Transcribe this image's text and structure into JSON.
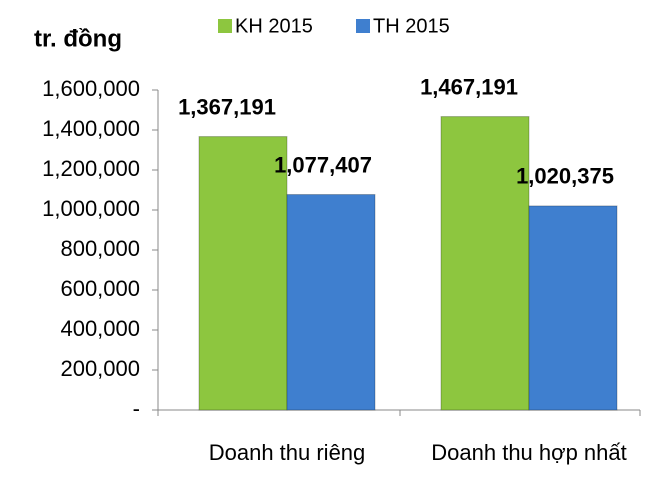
{
  "chart_data": {
    "type": "bar",
    "y_label": "tr. đồng",
    "categories": [
      "Doanh thu riêng",
      "Doanh thu hợp nhất"
    ],
    "series": [
      {
        "name": "KH 2015",
        "color": "#8dc63f",
        "values": [
          1367191,
          1467191
        ],
        "value_labels": [
          "1,367,191",
          "1,467,191"
        ]
      },
      {
        "name": "TH 2015",
        "color": "#3f7fcf",
        "values": [
          1077407,
          1020375
        ],
        "value_labels": [
          "1,077,407",
          "1,020,375"
        ]
      }
    ],
    "ylim": [
      0,
      1600000
    ],
    "yticks": [
      {
        "value": 0,
        "label": "-"
      },
      {
        "value": 200000,
        "label": "200,000"
      },
      {
        "value": 400000,
        "label": "400,000"
      },
      {
        "value": 600000,
        "label": "600,000"
      },
      {
        "value": 800000,
        "label": "800,000"
      },
      {
        "value": 1000000,
        "label": "1,000,000"
      },
      {
        "value": 1200000,
        "label": "1,200,000"
      },
      {
        "value": 1400000,
        "label": "1,400,000"
      },
      {
        "value": 1600000,
        "label": "1,600,000"
      }
    ],
    "grid": false,
    "legend": "top"
  }
}
